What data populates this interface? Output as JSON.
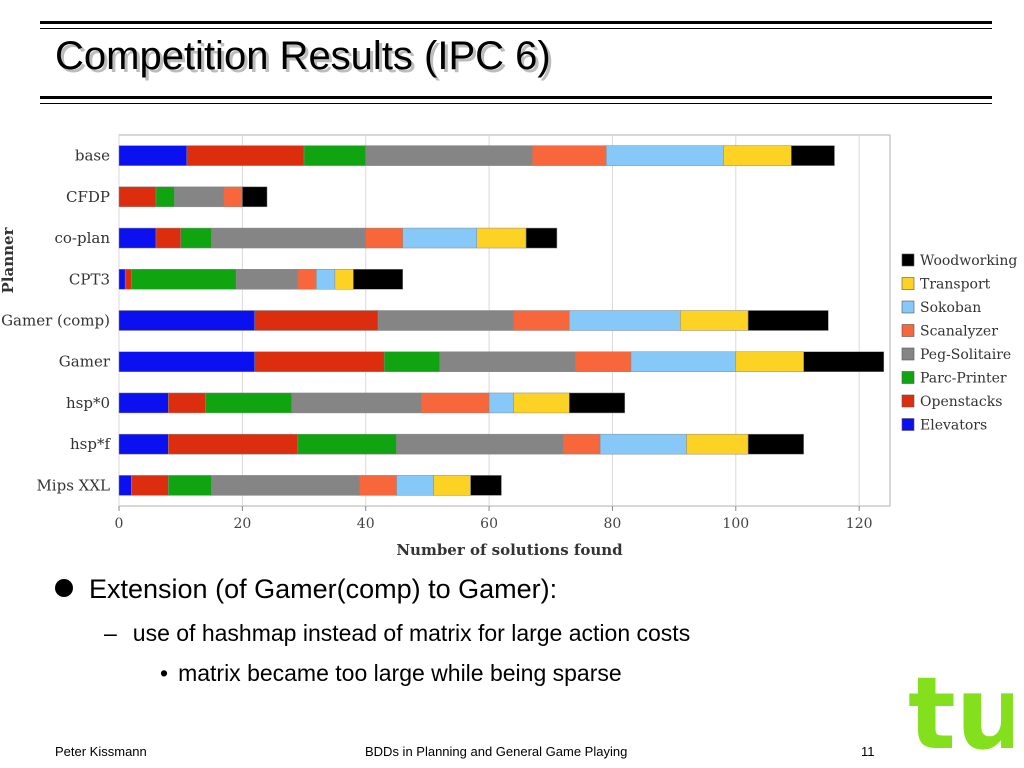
{
  "slide": {
    "title": "Competition Results (IPC 6)",
    "bullet1": "Extension (of Gamer(comp) to Gamer):",
    "bullet2": "use of hashmap instead of matrix for large action costs",
    "bullet3": "matrix became too large while being sparse",
    "footer_left": "Peter Kissmann",
    "footer_center": "BDDs in Planning and General Game Playing",
    "page_number": "11",
    "logo_text": "tu",
    "logo_color": "#84e01c"
  },
  "chart_data": {
    "type": "bar",
    "orientation": "horizontal",
    "stacked": true,
    "categories": [
      "base",
      "CFDP",
      "co-plan",
      "CPT3",
      "Gamer (comp)",
      "Gamer",
      "hsp*0",
      "hsp*f",
      "Mips XXL"
    ],
    "series": [
      {
        "name": "Elevators",
        "color": "#0a10f0",
        "values": [
          11,
          0,
          6,
          1,
          22,
          22,
          8,
          8,
          2
        ]
      },
      {
        "name": "Openstacks",
        "color": "#dc2e0e",
        "values": [
          19,
          6,
          4,
          1,
          20,
          21,
          6,
          21,
          6
        ]
      },
      {
        "name": "Parc-Printer",
        "color": "#10a410",
        "values": [
          10,
          3,
          5,
          17,
          0,
          9,
          14,
          16,
          7
        ]
      },
      {
        "name": "Peg-Solitaire",
        "color": "#858585",
        "values": [
          27,
          8,
          25,
          10,
          22,
          22,
          21,
          27,
          24
        ]
      },
      {
        "name": "Scanalyzer",
        "color": "#f8663c",
        "values": [
          12,
          3,
          6,
          3,
          9,
          9,
          11,
          6,
          6
        ]
      },
      {
        "name": "Sokoban",
        "color": "#86c8f8",
        "values": [
          19,
          0,
          12,
          3,
          18,
          17,
          4,
          14,
          6
        ]
      },
      {
        "name": "Transport",
        "color": "#fcd224",
        "values": [
          11,
          0,
          8,
          3,
          11,
          11,
          9,
          10,
          6
        ]
      },
      {
        "name": "Woodworking",
        "color": "#000000",
        "values": [
          7,
          4,
          5,
          8,
          13,
          13,
          9,
          9,
          5
        ]
      }
    ],
    "legend_order": [
      "Woodworking",
      "Transport",
      "Sokoban",
      "Scanalyzer",
      "Peg-Solitaire",
      "Parc-Printer",
      "Openstacks",
      "Elevators"
    ],
    "xlabel": "Number of solutions found",
    "ylabel": "Planner",
    "xlim": [
      0,
      125
    ],
    "xticks": [
      0,
      20,
      40,
      60,
      80,
      100,
      120
    ],
    "grid": true,
    "legend_position": "right"
  }
}
